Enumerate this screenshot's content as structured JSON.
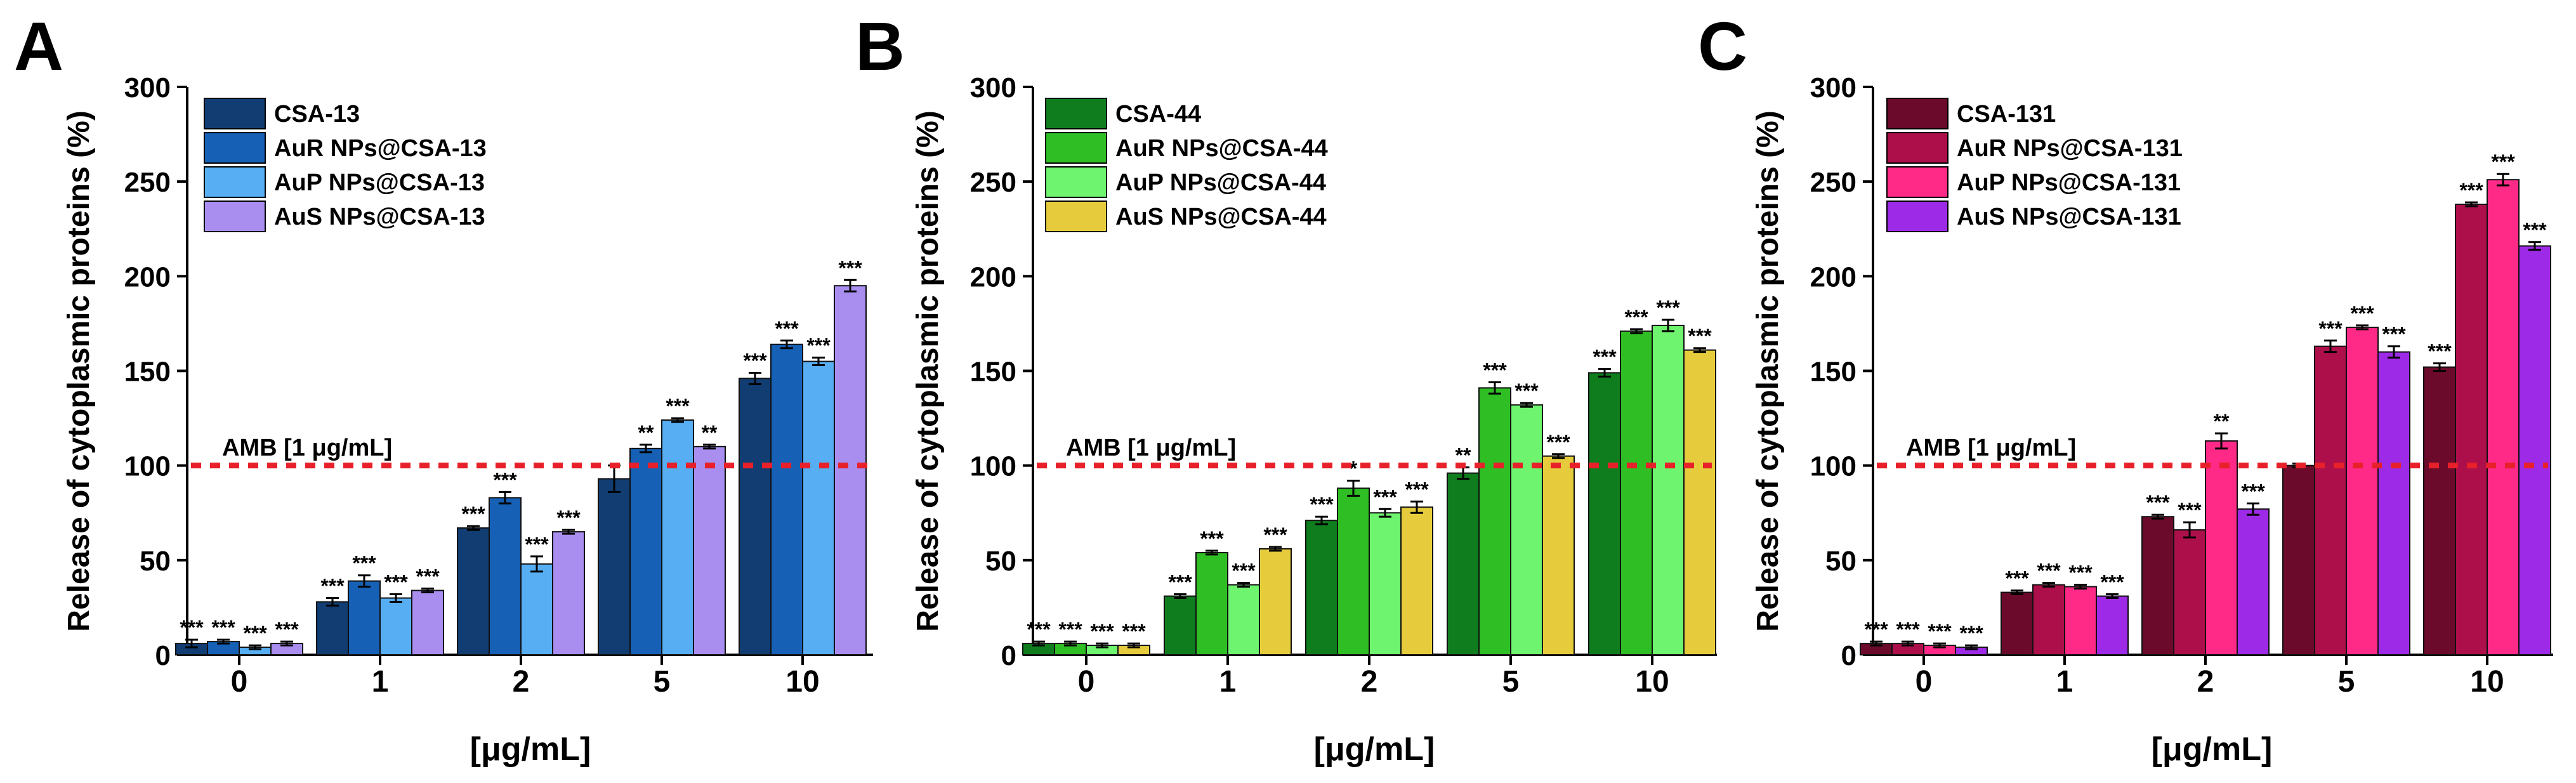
{
  "figure": {
    "panels": [
      {
        "letter": "A",
        "ylabel": "Release of cytoplasmic proteins (%)",
        "xlabel": "[μg/mL]",
        "reference_label": "AMB [1 μg/mL]",
        "reference_value": 100,
        "reference_color": "#e8202a",
        "legend": [
          "CSA-13",
          "AuR NPs@CSA-13",
          "AuP NPs@CSA-13",
          "AuS NPs@CSA-13"
        ],
        "colors": [
          "#113d72",
          "#1660b5",
          "#57aef2",
          "#a98ef0"
        ]
      },
      {
        "letter": "B",
        "ylabel": "Release of cytoplasmic proteins (%)",
        "xlabel": "[μg/mL]",
        "reference_label": "AMB [1 μg/mL]",
        "reference_value": 100,
        "reference_color": "#e8202a",
        "legend": [
          "CSA-44",
          "AuR NPs@CSA-44",
          "AuP NPs@CSA-44",
          "AuS NPs@CSA-44"
        ],
        "colors": [
          "#0f7d1e",
          "#2fbe24",
          "#6ef46e",
          "#e6cc3c"
        ]
      },
      {
        "letter": "C",
        "ylabel": "Release of cytoplasmic proteins (%)",
        "xlabel": "[μg/mL]",
        "reference_label": "AMB [1 μg/mL]",
        "reference_value": 100,
        "reference_color": "#e8202a",
        "legend": [
          "CSA-131",
          "AuR NPs@CSA-131",
          "AuP NPs@CSA-131",
          "AuS NPs@CSA-131"
        ],
        "colors": [
          "#6b0a2a",
          "#ad0f4b",
          "#ff2a88",
          "#9d2ae6"
        ]
      }
    ]
  },
  "chart_data": [
    {
      "type": "bar",
      "title": "A",
      "xlabel": "[μg/mL]",
      "ylabel": "Release of cytoplasmic proteins (%)",
      "ylim": [
        0,
        300
      ],
      "yticks": [
        0,
        50,
        100,
        150,
        200,
        250,
        300
      ],
      "categories": [
        "0",
        "1",
        "2",
        "5",
        "10"
      ],
      "reference_line": {
        "label": "AMB [1 μg/mL]",
        "value": 100
      },
      "series": [
        {
          "name": "CSA-13",
          "values": [
            6,
            28,
            67,
            93,
            146
          ],
          "errors": [
            2,
            2,
            1,
            7,
            3
          ],
          "significance": [
            "***",
            "***",
            "***",
            "",
            "***"
          ]
        },
        {
          "name": "AuR NPs@CSA-13",
          "values": [
            7,
            39,
            83,
            109,
            164
          ],
          "errors": [
            1,
            3,
            3,
            2,
            2
          ],
          "significance": [
            "***",
            "***",
            "***",
            "**",
            "***"
          ]
        },
        {
          "name": "AuP NPs@CSA-13",
          "values": [
            4,
            30,
            48,
            124,
            155
          ],
          "errors": [
            1,
            2,
            4,
            1,
            2
          ],
          "significance": [
            "***",
            "***",
            "***",
            "***",
            "***"
          ]
        },
        {
          "name": "AuS NPs@CSA-13",
          "values": [
            6,
            34,
            65,
            110,
            195
          ],
          "errors": [
            1,
            1,
            1,
            1,
            3
          ],
          "significance": [
            "***",
            "***",
            "***",
            "**",
            "***"
          ]
        }
      ]
    },
    {
      "type": "bar",
      "title": "B",
      "xlabel": "[μg/mL]",
      "ylabel": "Release of cytoplasmic proteins (%)",
      "ylim": [
        0,
        300
      ],
      "yticks": [
        0,
        50,
        100,
        150,
        200,
        250,
        300
      ],
      "categories": [
        "0",
        "1",
        "2",
        "5",
        "10"
      ],
      "reference_line": {
        "label": "AMB [1 μg/mL]",
        "value": 100
      },
      "series": [
        {
          "name": "CSA-44",
          "values": [
            6,
            31,
            71,
            96,
            149
          ],
          "errors": [
            1,
            1,
            2,
            3,
            2
          ],
          "significance": [
            "***",
            "***",
            "***",
            "**",
            "***"
          ]
        },
        {
          "name": "AuR NPs@CSA-44",
          "values": [
            6,
            54,
            88,
            141,
            171
          ],
          "errors": [
            1,
            1,
            4,
            3,
            1
          ],
          "significance": [
            "***",
            "***",
            "*",
            "***",
            "***"
          ]
        },
        {
          "name": "AuP NPs@CSA-44",
          "values": [
            5,
            37,
            75,
            132,
            174
          ],
          "errors": [
            1,
            1,
            2,
            1,
            3
          ],
          "significance": [
            "***",
            "***",
            "***",
            "***",
            "***"
          ]
        },
        {
          "name": "AuS NPs@CSA-44",
          "values": [
            5,
            56,
            78,
            105,
            161
          ],
          "errors": [
            1,
            1,
            3,
            1,
            1
          ],
          "significance": [
            "***",
            "***",
            "***",
            "***",
            "***"
          ]
        }
      ]
    },
    {
      "type": "bar",
      "title": "C",
      "xlabel": "[μg/mL]",
      "ylabel": "Release of cytoplasmic proteins (%)",
      "ylim": [
        0,
        300
      ],
      "yticks": [
        0,
        50,
        100,
        150,
        200,
        250,
        300
      ],
      "categories": [
        "0",
        "1",
        "2",
        "5",
        "10"
      ],
      "reference_line": {
        "label": "AMB [1 μg/mL]",
        "value": 100
      },
      "series": [
        {
          "name": "CSA-131",
          "values": [
            6,
            33,
            73,
            100,
            152
          ],
          "errors": [
            1,
            1,
            1,
            1,
            2
          ],
          "significance": [
            "***",
            "***",
            "***",
            "",
            "***"
          ]
        },
        {
          "name": "AuR NPs@CSA-131",
          "values": [
            6,
            37,
            66,
            163,
            238
          ],
          "errors": [
            1,
            1,
            4,
            3,
            1
          ],
          "significance": [
            "***",
            "***",
            "***",
            "***",
            "***"
          ]
        },
        {
          "name": "AuP NPs@CSA-131",
          "values": [
            5,
            36,
            113,
            173,
            251
          ],
          "errors": [
            1,
            1,
            4,
            1,
            3
          ],
          "significance": [
            "***",
            "***",
            "**",
            "***",
            "***"
          ]
        },
        {
          "name": "AuS NPs@CSA-131",
          "values": [
            4,
            31,
            77,
            160,
            216
          ],
          "errors": [
            1,
            1,
            3,
            3,
            2
          ],
          "significance": [
            "***",
            "***",
            "***",
            "***",
            "***"
          ]
        }
      ]
    }
  ]
}
